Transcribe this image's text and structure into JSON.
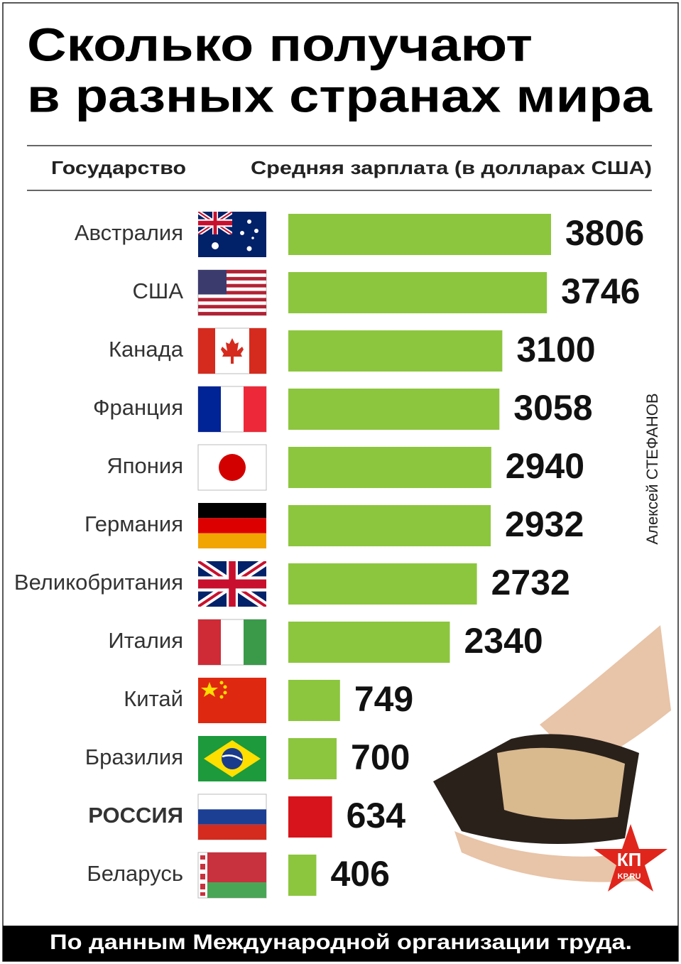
{
  "chart_data": {
    "type": "bar",
    "orientation": "horizontal",
    "title": [
      "Сколько получают",
      "в разных странах мира"
    ],
    "category_header": "Государство",
    "value_header": "Средняя зарплата (в долларах США)",
    "categories": [
      "Австралия",
      "США",
      "Канада",
      "Франция",
      "Япония",
      "Германия",
      "Великобритания",
      "Италия",
      "Китай",
      "Бразилия",
      "РОССИЯ",
      "Беларусь"
    ],
    "values": [
      3806,
      3746,
      3100,
      3058,
      2940,
      2932,
      2732,
      2340,
      749,
      700,
      634,
      406
    ],
    "color": "#8cc63e",
    "colors": [
      "#8cc63e",
      "#8cc63e",
      "#8cc63e",
      "#8cc63e",
      "#8cc63e",
      "#8cc63e",
      "#8cc63e",
      "#8cc63e",
      "#8cc63e",
      "#8cc63e",
      "#d7141b",
      "#8cc63e"
    ],
    "credit": "Алексей СТЕФАНОВ",
    "source": "По данным Международной организации труда."
  },
  "logo": {
    "text": "КП",
    "site": "KP.RU"
  }
}
